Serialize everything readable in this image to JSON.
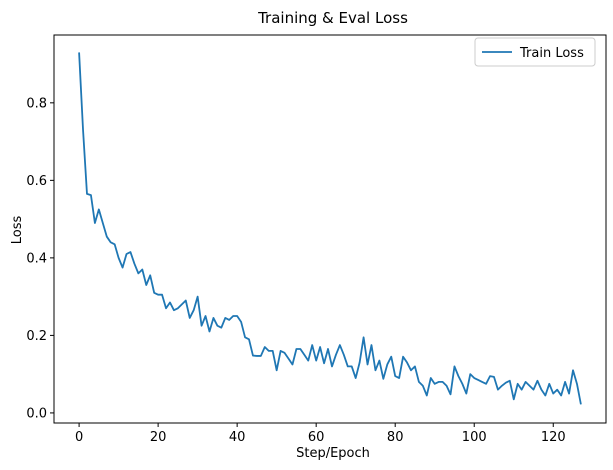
{
  "chart_data": {
    "type": "line",
    "title": "Training & Eval Loss",
    "xlabel": "Step/Epoch",
    "ylabel": "Loss",
    "xlim": [
      -6.35,
      133.35
    ],
    "ylim": [
      -0.026,
      0.975
    ],
    "xticks": [
      0,
      20,
      40,
      60,
      80,
      100,
      120
    ],
    "yticks": [
      0.0,
      0.2,
      0.4,
      0.6,
      0.8
    ],
    "ytick_labels": [
      "0.0",
      "0.2",
      "0.4",
      "0.6",
      "0.8"
    ],
    "grid": false,
    "legend_position": "top-right",
    "series": [
      {
        "name": "Train Loss",
        "color": "#1f77b4",
        "x": [
          0,
          1,
          2,
          3,
          4,
          5,
          6,
          7,
          8,
          9,
          10,
          11,
          12,
          13,
          14,
          15,
          16,
          17,
          18,
          19,
          20,
          21,
          22,
          23,
          24,
          25,
          26,
          27,
          28,
          29,
          30,
          31,
          32,
          33,
          34,
          35,
          36,
          37,
          38,
          39,
          40,
          41,
          42,
          43,
          44,
          45,
          46,
          47,
          48,
          49,
          50,
          51,
          52,
          53,
          54,
          55,
          56,
          57,
          58,
          59,
          60,
          61,
          62,
          63,
          64,
          65,
          66,
          67,
          68,
          69,
          70,
          71,
          72,
          73,
          74,
          75,
          76,
          77,
          78,
          79,
          80,
          81,
          82,
          83,
          84,
          85,
          86,
          87,
          88,
          89,
          90,
          91,
          92,
          93,
          94,
          95,
          96,
          97,
          98,
          99,
          100,
          101,
          102,
          103,
          104,
          105,
          106,
          107,
          108,
          109,
          110,
          111,
          112,
          113,
          114,
          115,
          116,
          117,
          118,
          119,
          120,
          121,
          122,
          123,
          124,
          125,
          126,
          127
        ],
        "y": [
          0.93,
          0.73,
          0.565,
          0.562,
          0.49,
          0.525,
          0.49,
          0.455,
          0.44,
          0.435,
          0.4,
          0.375,
          0.41,
          0.415,
          0.385,
          0.36,
          0.37,
          0.33,
          0.355,
          0.31,
          0.305,
          0.305,
          0.27,
          0.285,
          0.265,
          0.27,
          0.28,
          0.29,
          0.245,
          0.265,
          0.3,
          0.225,
          0.25,
          0.21,
          0.245,
          0.225,
          0.22,
          0.245,
          0.24,
          0.25,
          0.25,
          0.235,
          0.195,
          0.19,
          0.148,
          0.147,
          0.147,
          0.17,
          0.16,
          0.16,
          0.11,
          0.16,
          0.155,
          0.14,
          0.125,
          0.165,
          0.165,
          0.15,
          0.135,
          0.175,
          0.135,
          0.17,
          0.128,
          0.165,
          0.12,
          0.15,
          0.175,
          0.15,
          0.12,
          0.12,
          0.09,
          0.13,
          0.195,
          0.125,
          0.175,
          0.11,
          0.135,
          0.088,
          0.125,
          0.145,
          0.095,
          0.09,
          0.145,
          0.13,
          0.11,
          0.12,
          0.08,
          0.07,
          0.045,
          0.09,
          0.075,
          0.08,
          0.08,
          0.07,
          0.048,
          0.12,
          0.095,
          0.075,
          0.05,
          0.1,
          0.09,
          0.085,
          0.08,
          0.075,
          0.095,
          0.093,
          0.06,
          0.07,
          0.078,
          0.083,
          0.035,
          0.075,
          0.06,
          0.08,
          0.07,
          0.06,
          0.083,
          0.06,
          0.045,
          0.075,
          0.05,
          0.06,
          0.045,
          0.08,
          0.05,
          0.11,
          0.075,
          0.022
        ]
      }
    ]
  }
}
